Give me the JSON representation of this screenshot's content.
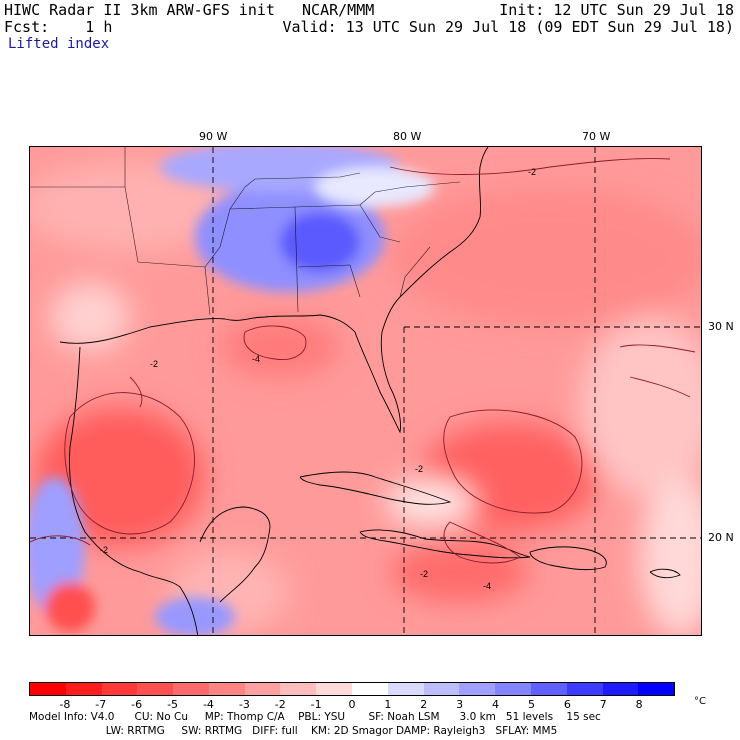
{
  "header": {
    "line1_left": "HIWC Radar II 3km ARW-GFS init   NCAR/MMM",
    "line1_right": "Init: 12 UTC Sun 29 Jul 18",
    "line2_left": "Fcst:    1 h",
    "line2_right": "Valid: 13 UTC Sun 29 Jul 18 (09 EDT Sun 29 Jul 18)",
    "field_name": "Lifted index"
  },
  "map": {
    "lon_labels": [
      "90 W",
      "80 W",
      "70 W"
    ],
    "lat_labels": [
      "30 N",
      "20 N"
    ],
    "contour_labels": [
      "-2",
      "-4"
    ]
  },
  "colorbar": {
    "ticks": [
      "-8",
      "-7",
      "-6",
      "-5",
      "-4",
      "-3",
      "-2",
      "-1",
      "0",
      "1",
      "2",
      "3",
      "4",
      "5",
      "6",
      "7",
      "8"
    ],
    "unit": "°C",
    "colors": [
      "#ff0000",
      "#ff1c1c",
      "#ff3838",
      "#ff5050",
      "#ff6a6a",
      "#ff8484",
      "#ffa0a0",
      "#ffbcbc",
      "#ffdada",
      "#ffffff",
      "#dadaff",
      "#bcbcff",
      "#a0a0ff",
      "#8484ff",
      "#6060ff",
      "#3c3cff",
      "#1c1cff",
      "#0000ff"
    ]
  },
  "model_info": {
    "line1": "Model Info: V4.0      CU: No Cu     MP: Thomp C/A    PBL: YSU       SF: Noah LSM      3.0 km   51 levels    15 sec",
    "line2": "                       LW: RRTMG     SW: RRTMG   DIFF: full    KM: 2D Smagor DAMP: Rayleigh3   SFLAY: MM5"
  }
}
